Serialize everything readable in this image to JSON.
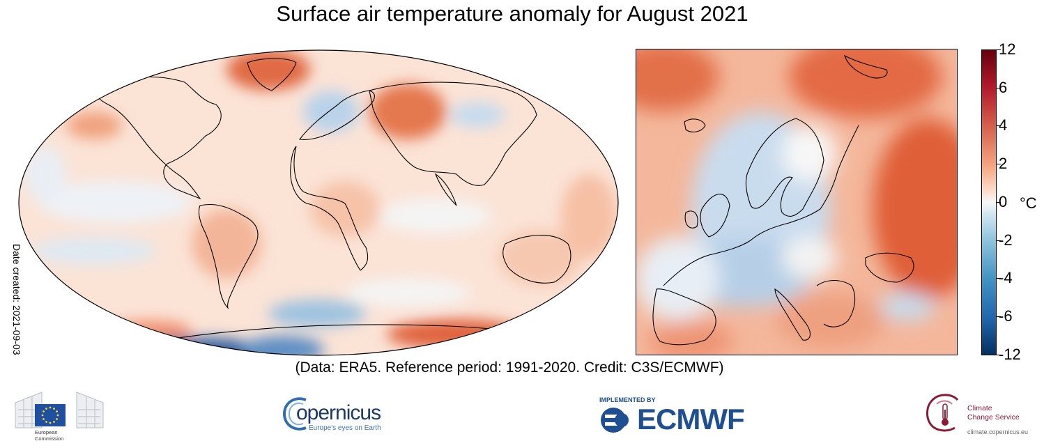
{
  "title": "Surface air temperature anomaly for August 2021",
  "date_created": "Date created: 2021-09-03",
  "credit": "(Data: ERA5.  Reference period: 1991-2020.  Credit: C3S/ECMWF)",
  "colorbar": {
    "tick_labels": [
      "12",
      "6",
      "4",
      "2",
      "0",
      "-2",
      "-4",
      "-6",
      "-12"
    ],
    "unit": "°C"
  },
  "maps": {
    "world": {
      "projection": "robinson"
    },
    "europe": {
      "projection": "rectangular"
    }
  },
  "logos": {
    "european_commission": {
      "line1": "European",
      "line2": "Commission"
    },
    "copernicus": {
      "name": "opernicus",
      "tagline": "Europe's eyes on Earth"
    },
    "ecmwf": {
      "implemented_by": "IMPLEMENTED BY",
      "name": "ECMWF"
    },
    "c3s": {
      "line1": "Climate",
      "line2": "Change Service",
      "url": "climate.copernicus.eu"
    }
  },
  "colors": {
    "warm_strong": "#b2182b",
    "warm": "#f4a582",
    "neutral": "#f7f7f7",
    "cool": "#92c5de",
    "cool_strong": "#2166ac",
    "coastline": "#000000"
  }
}
